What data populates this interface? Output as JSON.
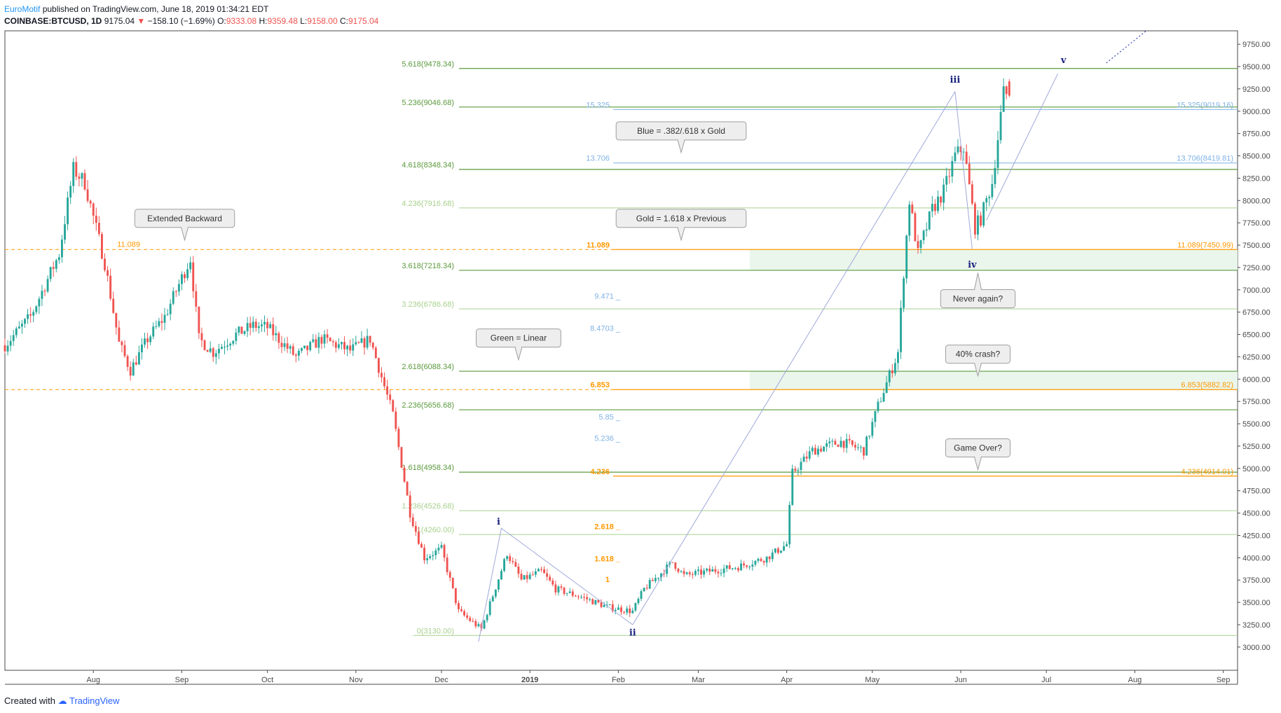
{
  "header": {
    "author": "EuroMotif",
    "published": "published on TradingView.com, June 18, 2019 01:34:21 EDT",
    "symbol": "COINBASE:BTCUSD, 1D",
    "last": "9175.04",
    "arrow": "▼",
    "change": "−158.10 (−1.69%)",
    "o_label": "O:",
    "o": "9333.08",
    "h_label": "H:",
    "h": "9359.48",
    "l_label": "L:",
    "l": "9158.00",
    "c_label": "C:",
    "c": "9175.04"
  },
  "footer": {
    "created": "Created with",
    "brand": "TradingView"
  },
  "colors": {
    "up": "#26a69a",
    "down": "#ef5350",
    "green_fib": "#5b9a3c",
    "light_green_fib": "#a7d08c",
    "orange_fib": "#ff9800",
    "blue_fib": "#7fb2e5",
    "wave_label": "#1a237e",
    "zone_fill": "#e8f5e9"
  },
  "chart_data": {
    "type": "candlestick",
    "symbol": "COINBASE:BTCUSD",
    "timeframe": "1D",
    "y_axis": {
      "ticks": [
        "9750.00",
        "9500.00",
        "9250.00",
        "9000.00",
        "8750.00",
        "8500.00",
        "8250.00",
        "8000.00",
        "7750.00",
        "7500.00",
        "7250.00",
        "7000.00",
        "6750.00",
        "6500.00",
        "6250.00",
        "6000.00",
        "5750.00",
        "5500.00",
        "5250.00",
        "5000.00",
        "4750.00",
        "4500.00",
        "4250.00",
        "4000.00",
        "3750.00",
        "3500.00",
        "3250.00",
        "3000.00"
      ],
      "range": [
        2740,
        9900
      ]
    },
    "x_axis": {
      "ticks": [
        {
          "label": "Aug",
          "date": "2018-08-01"
        },
        {
          "label": "Sep",
          "date": "2018-09-01"
        },
        {
          "label": "Oct",
          "date": "2018-10-01"
        },
        {
          "label": "Nov",
          "date": "2018-11-01"
        },
        {
          "label": "Dec",
          "date": "2018-12-01"
        },
        {
          "label": "2019",
          "date": "2019-01-01"
        },
        {
          "label": "Feb",
          "date": "2019-02-01"
        },
        {
          "label": "Mar",
          "date": "2019-03-01"
        },
        {
          "label": "Apr",
          "date": "2019-04-01"
        },
        {
          "label": "May",
          "date": "2019-05-01"
        },
        {
          "label": "Jun",
          "date": "2019-06-01"
        },
        {
          "label": "Jul",
          "date": "2019-07-01"
        },
        {
          "label": "Aug",
          "date": "2019-08-01"
        },
        {
          "label": "Sep",
          "date": "2019-09-01"
        }
      ],
      "range": [
        "2018-07-01",
        "2019-09-06"
      ]
    },
    "price_path": [
      [
        "2018-07-01",
        6380
      ],
      [
        "2018-07-10",
        6700
      ],
      [
        "2018-07-20",
        7400
      ],
      [
        "2018-07-25",
        8350
      ],
      [
        "2018-07-29",
        8200
      ],
      [
        "2018-08-05",
        7300
      ],
      [
        "2018-08-10",
        6400
      ],
      [
        "2018-08-14",
        6100
      ],
      [
        "2018-08-20",
        6450
      ],
      [
        "2018-08-26",
        6700
      ],
      [
        "2018-09-04",
        7350
      ],
      [
        "2018-09-07",
        6450
      ],
      [
        "2018-09-12",
        6300
      ],
      [
        "2018-09-20",
        6500
      ],
      [
        "2018-09-26",
        6600
      ],
      [
        "2018-10-01",
        6580
      ],
      [
        "2018-10-11",
        6250
      ],
      [
        "2018-10-20",
        6450
      ],
      [
        "2018-10-30",
        6320
      ],
      [
        "2018-11-06",
        6450
      ],
      [
        "2018-11-14",
        5600
      ],
      [
        "2018-11-20",
        4500
      ],
      [
        "2018-11-25",
        4000
      ],
      [
        "2018-12-01",
        4100
      ],
      [
        "2018-12-07",
        3400
      ],
      [
        "2018-12-15",
        3200
      ],
      [
        "2018-12-24",
        4050
      ],
      [
        "2018-12-29",
        3750
      ],
      [
        "2019-01-05",
        3850
      ],
      [
        "2019-01-10",
        3650
      ],
      [
        "2019-01-20",
        3550
      ],
      [
        "2019-01-28",
        3450
      ],
      [
        "2019-02-06",
        3400
      ],
      [
        "2019-02-10",
        3650
      ],
      [
        "2019-02-20",
        3950
      ],
      [
        "2019-02-24",
        3800
      ],
      [
        "2019-03-05",
        3850
      ],
      [
        "2019-03-15",
        3900
      ],
      [
        "2019-03-25",
        4000
      ],
      [
        "2019-04-01",
        4150
      ],
      [
        "2019-04-03",
        4950
      ],
      [
        "2019-04-10",
        5200
      ],
      [
        "2019-04-20",
        5300
      ],
      [
        "2019-04-28",
        5200
      ],
      [
        "2019-05-03",
        5700
      ],
      [
        "2019-05-10",
        6300
      ],
      [
        "2019-05-12",
        7200
      ],
      [
        "2019-05-14",
        8000
      ],
      [
        "2019-05-17",
        7400
      ],
      [
        "2019-05-22",
        7900
      ],
      [
        "2019-05-26",
        8100
      ],
      [
        "2019-05-30",
        8500
      ],
      [
        "2019-06-02",
        8600
      ],
      [
        "2019-06-06",
        7700
      ],
      [
        "2019-06-08",
        7800
      ],
      [
        "2019-06-12",
        8200
      ],
      [
        "2019-06-14",
        8700
      ],
      [
        "2019-06-16",
        9200
      ],
      [
        "2019-06-18",
        9175
      ]
    ],
    "last_candle": {
      "date": "2019-06-18",
      "open": 9333.08,
      "high": 9359.48,
      "low": 9158.0,
      "close": 9175.04
    },
    "gold_fibs": [
      {
        "label": "5.618(9478.34)",
        "value": 9478.34,
        "tone": "dark"
      },
      {
        "label": "5.236(9046.68)",
        "value": 9046.68,
        "tone": "dark"
      },
      {
        "label": "4.618(8348.34)",
        "value": 8348.34,
        "tone": "dark"
      },
      {
        "label": "4.236(7916.68)",
        "value": 7916.68,
        "tone": "light"
      },
      {
        "label": "3.618(7218.34)",
        "value": 7218.34,
        "tone": "dark"
      },
      {
        "label": "3.236(6786.68)",
        "value": 6786.68,
        "tone": "light"
      },
      {
        "label": "2.618(6088.34)",
        "value": 6088.34,
        "tone": "dark"
      },
      {
        "label": "2.236(5656.68)",
        "value": 5656.68,
        "tone": "dark"
      },
      {
        "label": "1.618(4958.34)",
        "value": 4958.34,
        "tone": "dark"
      },
      {
        "label": "1.236(4526.68)",
        "value": 4526.68,
        "tone": "light"
      },
      {
        "label": "1(4260.00)",
        "value": 4260.0,
        "tone": "light"
      },
      {
        "label": "0(3130.00)",
        "value": 3130.0,
        "tone": "light"
      }
    ],
    "blue_fibs": [
      {
        "label": "15.325",
        "right_label": "15.325(9019.16)",
        "value": 9019.16
      },
      {
        "label": "13.706",
        "right_label": "13.706(8419.81)",
        "value": 8419.81
      }
    ],
    "blue_ticks": [
      {
        "label": "9.471 _",
        "value": 6930
      },
      {
        "label": "8.4703 _",
        "value": 6570
      },
      {
        "label": "5.85 _",
        "value": 5580
      },
      {
        "label": "5.236 _",
        "value": 5340
      }
    ],
    "orange_fibs": [
      {
        "label": "11.089",
        "right_label": "11.089(7450.99)",
        "value": 7450.99
      },
      {
        "label": "6.853",
        "right_label": "6.853(5882.82)",
        "value": 5882.82
      },
      {
        "label": "4.236",
        "right_label": "4.236(4914.01)",
        "value": 4914.01
      }
    ],
    "orange_ticks": [
      {
        "label": "2.618 _",
        "value": 4350
      },
      {
        "label": "1.618 _",
        "value": 3990
      },
      {
        "label": "1",
        "value": 3760
      }
    ],
    "left_extended_label": "11.089",
    "zones": [
      {
        "from": 7218.34,
        "to": 7450.99,
        "start": "2019-03-19"
      },
      {
        "from": 5882.82,
        "to": 6088.34,
        "start": "2019-03-19"
      }
    ],
    "wave_labels": [
      {
        "label": "i",
        "date": "2018-12-21",
        "value": 4370
      },
      {
        "label": "ii",
        "date": "2019-02-06",
        "value": 3130
      },
      {
        "label": "iii",
        "date": "2019-05-30",
        "value": 9320
      },
      {
        "label": "iv",
        "date": "2019-06-05",
        "value": 7250
      },
      {
        "label": "v",
        "date": "2019-07-07",
        "value": 9540
      }
    ],
    "callouts": [
      {
        "text": "Extended Backward",
        "date": "2018-09-02",
        "value": 7800,
        "pointer": "down"
      },
      {
        "text": "Blue = .382/.618 x Gold",
        "date": "2019-02-23",
        "value": 8780,
        "pointer": "down"
      },
      {
        "text": "Gold = 1.618 x Previous",
        "date": "2019-02-23",
        "value": 7800,
        "pointer": "down"
      },
      {
        "text": "Green = Linear",
        "date": "2018-12-28",
        "value": 6460,
        "pointer": "down"
      },
      {
        "text": "Never again?",
        "date": "2019-06-07",
        "value": 6900,
        "pointer": "up"
      },
      {
        "text": "40% crash?",
        "date": "2019-06-07",
        "value": 6280,
        "pointer": "down"
      },
      {
        "text": "Game Over?",
        "date": "2019-06-07",
        "value": 5230,
        "pointer": "down"
      }
    ]
  }
}
